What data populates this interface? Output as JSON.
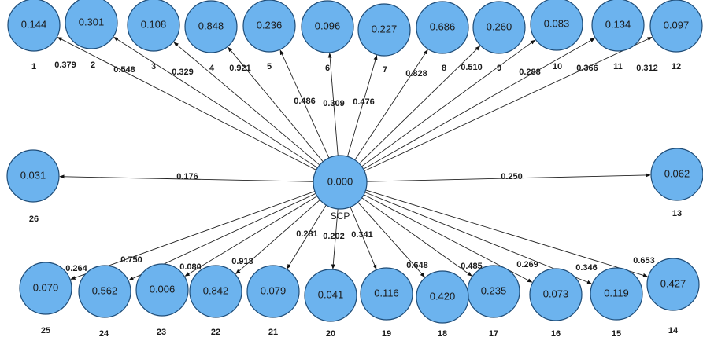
{
  "center": {
    "label": "SCP",
    "value": "0.000"
  },
  "nodes": [
    {
      "id": "1",
      "value": "0.144",
      "weight": "0.379"
    },
    {
      "id": "2",
      "value": "0.301",
      "weight": "0.548"
    },
    {
      "id": "3",
      "value": "0.108",
      "weight": "0.329"
    },
    {
      "id": "4",
      "value": "0.848",
      "weight": "0.921"
    },
    {
      "id": "5",
      "value": "0.236",
      "weight": "0.486"
    },
    {
      "id": "6",
      "value": "0.096",
      "weight": "0.309"
    },
    {
      "id": "7",
      "value": "0.227",
      "weight": "0.476"
    },
    {
      "id": "8",
      "value": "0.686",
      "weight": "0.828"
    },
    {
      "id": "9",
      "value": "0.260",
      "weight": "0.510"
    },
    {
      "id": "10",
      "value": "0.083",
      "weight": "0.288"
    },
    {
      "id": "11",
      "value": "0.134",
      "weight": "0.366"
    },
    {
      "id": "12",
      "value": "0.097",
      "weight": "0.312"
    },
    {
      "id": "13",
      "value": "0.062",
      "weight": "0.250"
    },
    {
      "id": "14",
      "value": "0.427",
      "weight": "0.653"
    },
    {
      "id": "15",
      "value": "0.119",
      "weight": "0.346"
    },
    {
      "id": "16",
      "value": "0.073",
      "weight": "0.269"
    },
    {
      "id": "17",
      "value": "0.235",
      "weight": "0.485"
    },
    {
      "id": "18",
      "value": "0.420",
      "weight": "0.648"
    },
    {
      "id": "19",
      "value": "0.116",
      "weight": "0.341"
    },
    {
      "id": "20",
      "value": "0.041",
      "weight": "0.202"
    },
    {
      "id": "21",
      "value": "0.079",
      "weight": "0.281"
    },
    {
      "id": "22",
      "value": "0.842",
      "weight": "0.918"
    },
    {
      "id": "23",
      "value": "0.006",
      "weight": "0.080"
    },
    {
      "id": "24",
      "value": "0.562",
      "weight": "0.750"
    },
    {
      "id": "25",
      "value": "0.070",
      "weight": "0.264"
    },
    {
      "id": "26",
      "value": "0.031",
      "weight": "0.176"
    }
  ],
  "colors": {
    "node_fill": "#6cb3ee",
    "node_stroke": "#1f4d78",
    "edge": "#222222"
  }
}
